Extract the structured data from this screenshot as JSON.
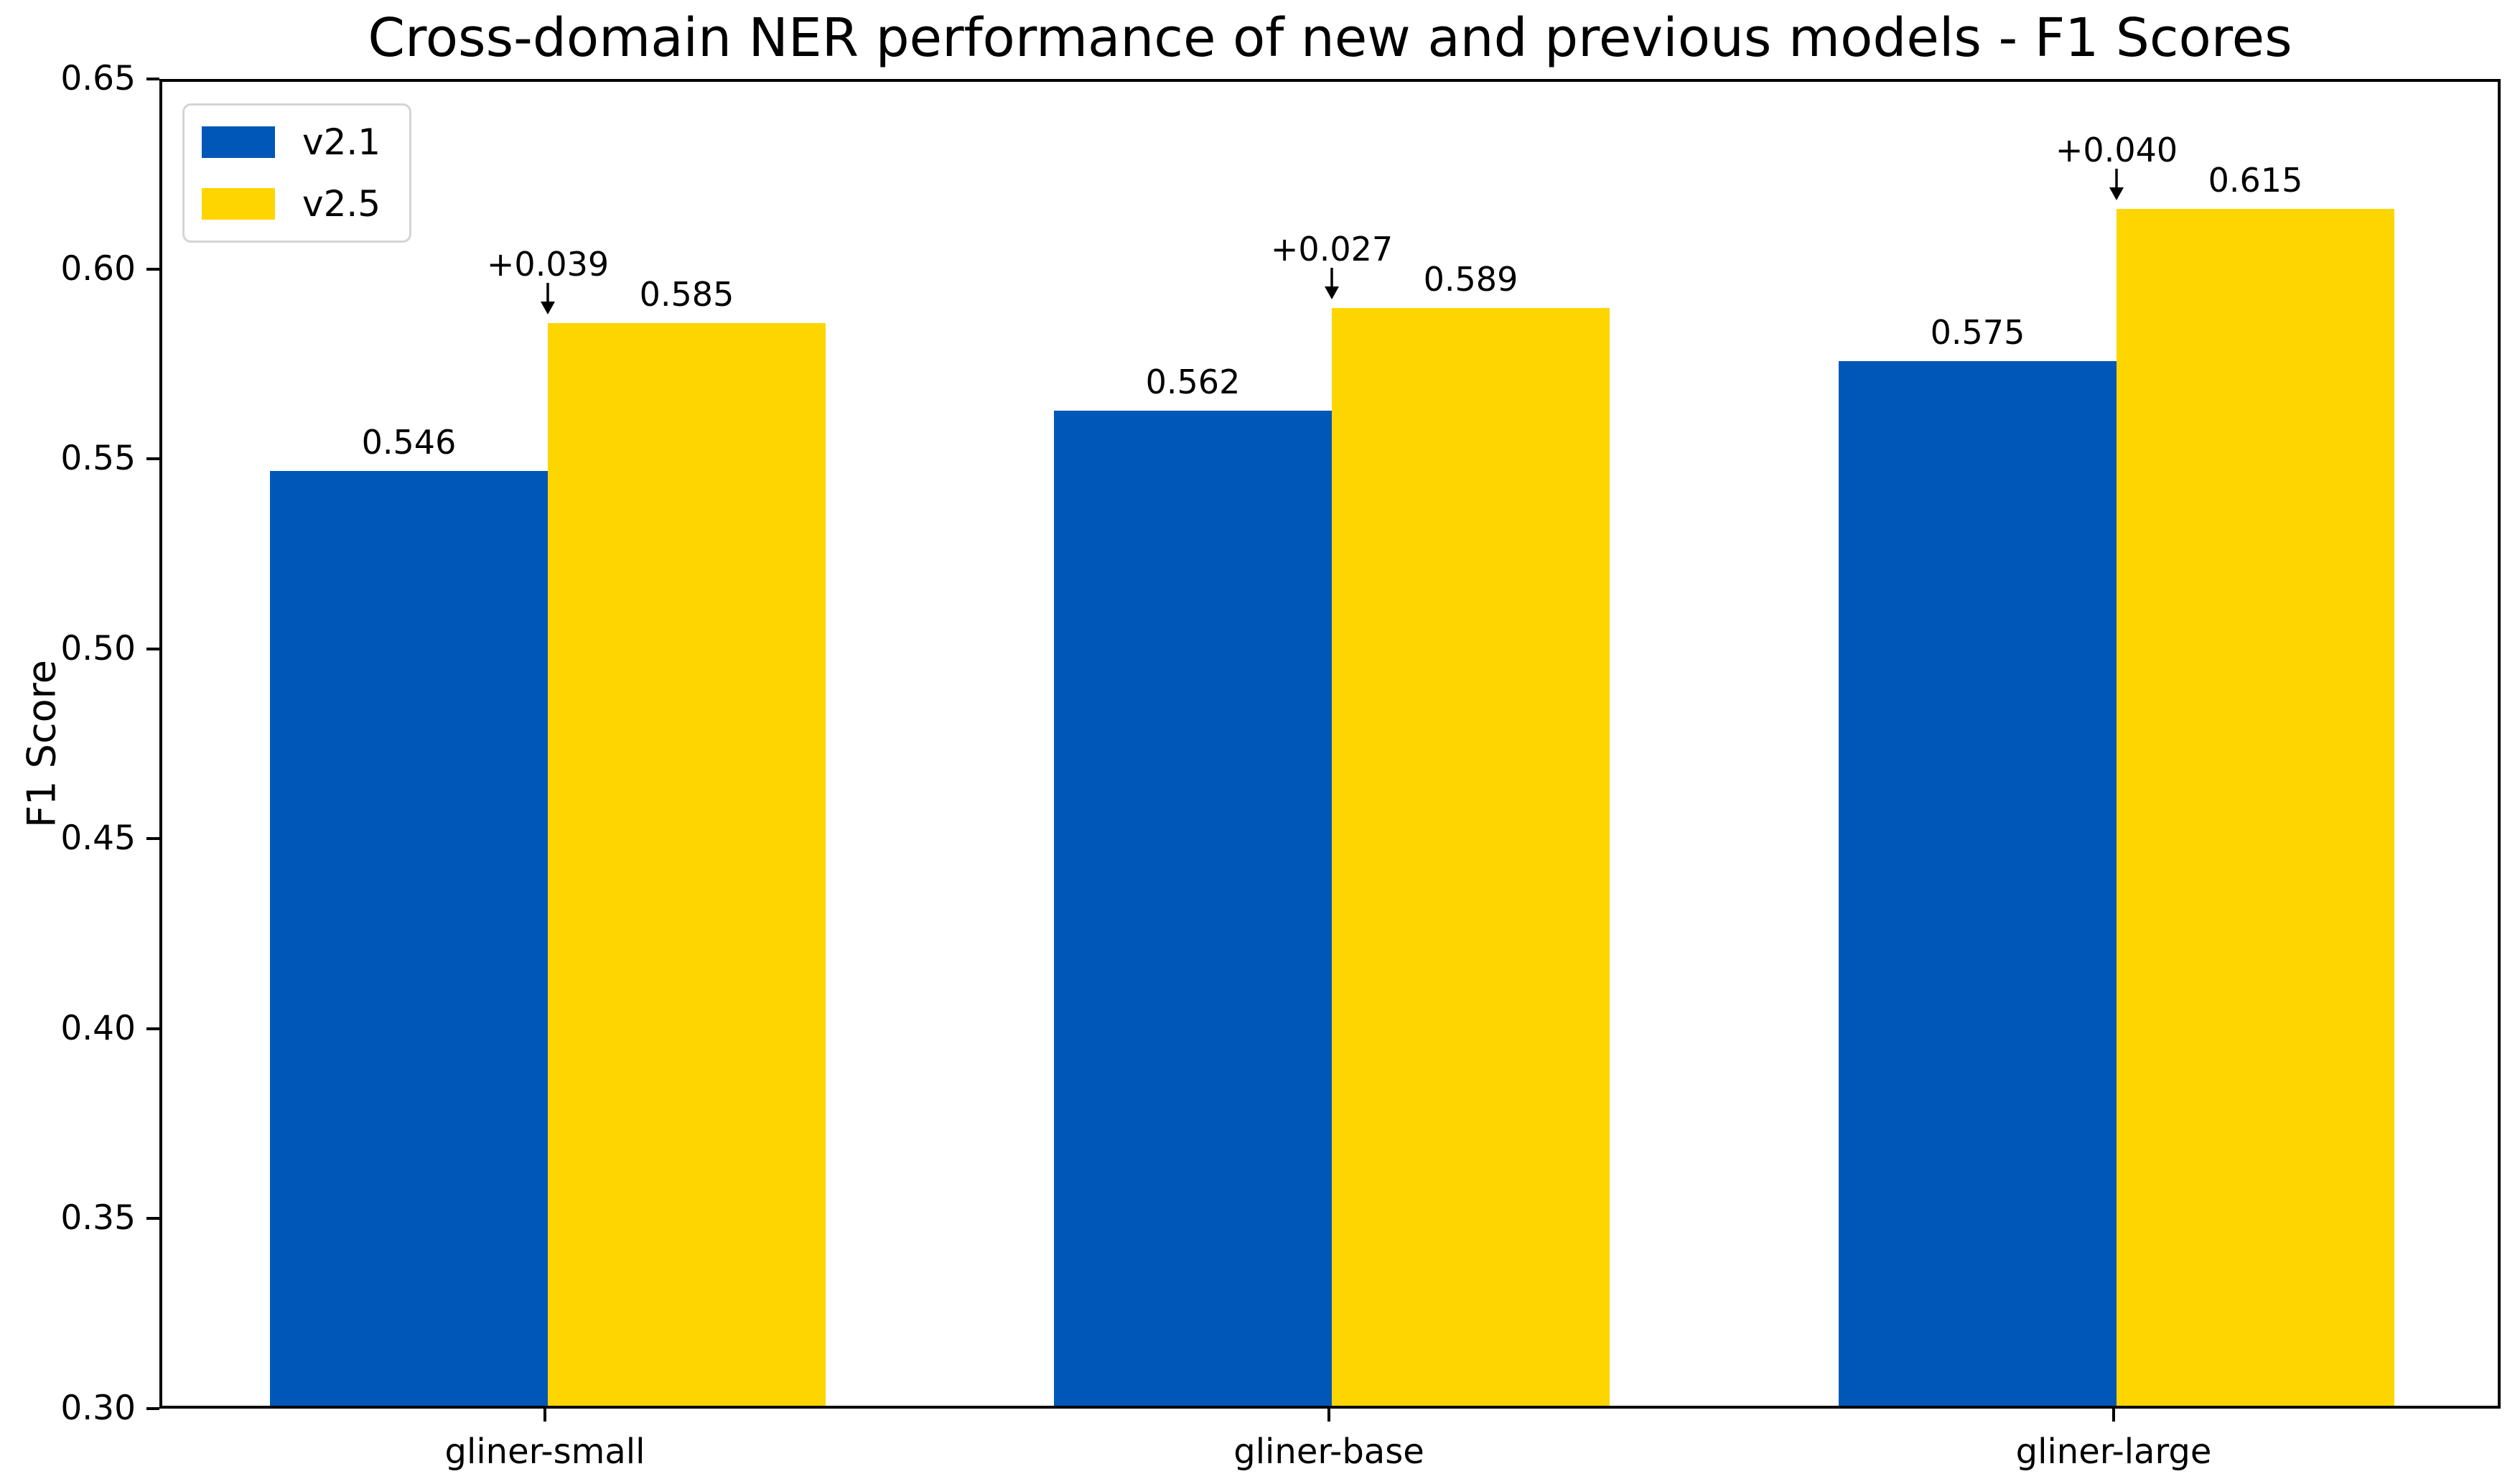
{
  "chart_data": {
    "type": "bar",
    "title": "Cross-domain NER performance of new and previous models - F1 Scores",
    "xlabel": "",
    "ylabel": "F1 Score",
    "categories": [
      "gliner-small",
      "gliner-base",
      "gliner-large"
    ],
    "series": [
      {
        "name": "v2.1",
        "color": "#0057b8",
        "values": [
          0.546,
          0.562,
          0.575
        ]
      },
      {
        "name": "v2.5",
        "color": "#ffd500",
        "values": [
          0.585,
          0.589,
          0.615
        ]
      }
    ],
    "value_labels": {
      "v21": [
        "0.546",
        "0.562",
        "0.575"
      ],
      "v25": [
        "0.585",
        "0.589",
        "0.615"
      ]
    },
    "delta_annotations": [
      "+0.039",
      "+0.027",
      "+0.040"
    ],
    "ylim": [
      0.3,
      0.65
    ],
    "ytick_labels": [
      "0.65",
      "0.60",
      "0.55",
      "0.50",
      "0.45",
      "0.40",
      "0.35",
      "0.30"
    ],
    "legend_position": "upper left",
    "grid": false,
    "colors": {
      "axis": "#000000",
      "background": "#ffffff",
      "legend_border": "#d4d4d4",
      "text": "#000000"
    }
  }
}
